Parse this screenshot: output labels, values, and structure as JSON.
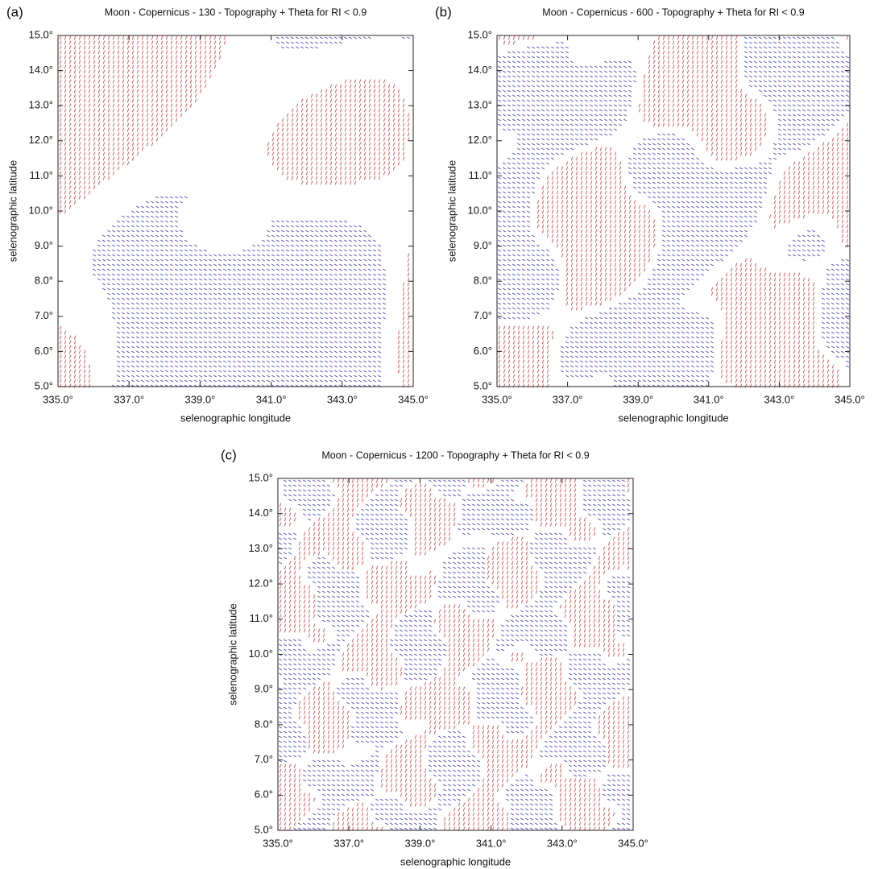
{
  "chart_data": [
    {
      "type": "map",
      "panel_label": "(a)",
      "title": "Moon - Copernicus - 130 - Topography + Theta for RI < 0.9",
      "x_label": "selenographic longitude",
      "y_label": "selenographic latitude",
      "xlim": [
        335,
        345
      ],
      "ylim": [
        5,
        15
      ],
      "xticks": [
        {
          "value": 335,
          "label": "335.0°"
        },
        {
          "value": 337,
          "label": "337.0°"
        },
        {
          "value": 339,
          "label": "339.0°"
        },
        {
          "value": 341,
          "label": "341.0°"
        },
        {
          "value": 343,
          "label": "343.0°"
        },
        {
          "value": 345,
          "label": "345.0°"
        }
      ],
      "yticks": [
        {
          "value": 5,
          "label": "5.0°"
        },
        {
          "value": 6,
          "label": "6.0°"
        },
        {
          "value": 7,
          "label": "7.0°"
        },
        {
          "value": 8,
          "label": "8.0°"
        },
        {
          "value": 9,
          "label": "9.0°"
        },
        {
          "value": 10,
          "label": "10.0°"
        },
        {
          "value": 11,
          "label": "11.0°"
        },
        {
          "value": 12,
          "label": "12.0°"
        },
        {
          "value": 13,
          "label": "13.0°"
        },
        {
          "value": 14,
          "label": "14.0°"
        },
        {
          "value": 15,
          "label": "15.0°"
        }
      ],
      "colors": [
        "#e06060",
        "#4a4ac8"
      ]
    },
    {
      "type": "map",
      "panel_label": "(b)",
      "title": "Moon - Copernicus - 600 - Topography + Theta for RI < 0.9",
      "x_label": "selenographic longitude",
      "y_label": "selenographic latitude",
      "xlim": [
        335,
        345
      ],
      "ylim": [
        5,
        15
      ],
      "xticks": [
        {
          "value": 335,
          "label": "335.0°"
        },
        {
          "value": 337,
          "label": "337.0°"
        },
        {
          "value": 339,
          "label": "339.0°"
        },
        {
          "value": 341,
          "label": "341.0°"
        },
        {
          "value": 343,
          "label": "343.0°"
        },
        {
          "value": 345,
          "label": "345.0°"
        }
      ],
      "yticks": [
        {
          "value": 5,
          "label": "5.0°"
        },
        {
          "value": 6,
          "label": "6.0°"
        },
        {
          "value": 7,
          "label": "7.0°"
        },
        {
          "value": 8,
          "label": "8.0°"
        },
        {
          "value": 9,
          "label": "9.0°"
        },
        {
          "value": 10,
          "label": "10.0°"
        },
        {
          "value": 11,
          "label": "11.0°"
        },
        {
          "value": 12,
          "label": "12.0°"
        },
        {
          "value": 13,
          "label": "13.0°"
        },
        {
          "value": 14,
          "label": "14.0°"
        },
        {
          "value": 15,
          "label": "15.0°"
        }
      ],
      "colors": [
        "#e06060",
        "#4a4ac8"
      ]
    },
    {
      "type": "map",
      "panel_label": "(c)",
      "title": "Moon - Copernicus - 1200 - Topography + Theta for RI < 0.9",
      "x_label": "selenographic longitude",
      "y_label": "selenographic latitude",
      "xlim": [
        335,
        345
      ],
      "ylim": [
        5,
        15
      ],
      "xticks": [
        {
          "value": 335,
          "label": "335.0°"
        },
        {
          "value": 337,
          "label": "337.0°"
        },
        {
          "value": 339,
          "label": "339.0°"
        },
        {
          "value": 341,
          "label": "341.0°"
        },
        {
          "value": 343,
          "label": "343.0°"
        },
        {
          "value": 345,
          "label": "345.0°"
        }
      ],
      "yticks": [
        {
          "value": 5,
          "label": "5.0°"
        },
        {
          "value": 6,
          "label": "6.0°"
        },
        {
          "value": 7,
          "label": "7.0°"
        },
        {
          "value": 8,
          "label": "8.0°"
        },
        {
          "value": 9,
          "label": "9.0°"
        },
        {
          "value": 10,
          "label": "10.0°"
        },
        {
          "value": 11,
          "label": "11.0°"
        },
        {
          "value": 12,
          "label": "12.0°"
        },
        {
          "value": 13,
          "label": "13.0°"
        },
        {
          "value": 14,
          "label": "14.0°"
        },
        {
          "value": 15,
          "label": "15.0°"
        }
      ],
      "colors": [
        "#e06060",
        "#4a4ac8"
      ]
    }
  ]
}
